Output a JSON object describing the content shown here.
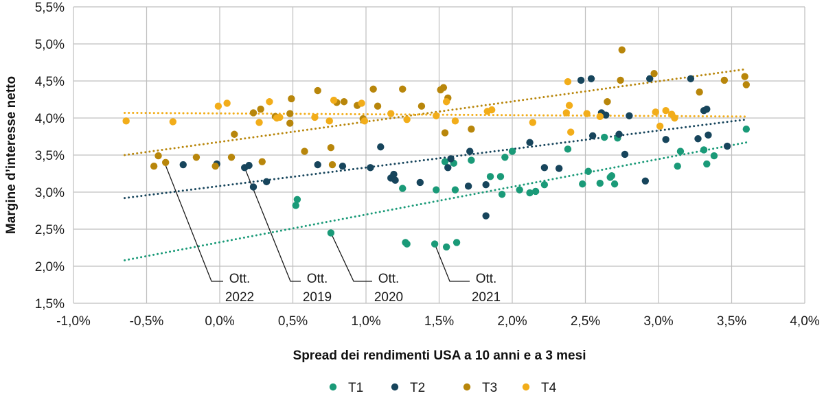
{
  "chart_data": {
    "type": "scatter",
    "xlabel": "Spread dei rendimenti USA a 10 anni e a 3 mesi",
    "ylabel": "Margine d’interesse netto",
    "x_ticks": [
      "-1,0%",
      "-0,5%",
      "0,0%",
      "0,5%",
      "1,0%",
      "1,5%",
      "2,0%",
      "2,5%",
      "3,0%",
      "3,5%",
      "4,0%"
    ],
    "y_ticks": [
      "1,5%",
      "2,0%",
      "2,5%",
      "3,0%",
      "3,5%",
      "4,0%",
      "4,5%",
      "5,0%",
      "5,5%"
    ],
    "xlim": [
      -1.0,
      4.0
    ],
    "ylim": [
      1.5,
      5.5
    ],
    "grid": true,
    "legend_position": "bottom",
    "series": [
      {
        "name": "T1",
        "color": "#1a9a78",
        "trendline": [
          [
            -0.65,
            2.08
          ],
          [
            3.6,
            3.67
          ]
        ],
        "points": [
          [
            0.52,
            2.82
          ],
          [
            0.53,
            2.9
          ],
          [
            0.76,
            2.45
          ],
          [
            1.25,
            3.05
          ],
          [
            1.27,
            2.32
          ],
          [
            1.28,
            2.3
          ],
          [
            1.47,
            2.3
          ],
          [
            1.48,
            3.03
          ],
          [
            1.54,
            3.41
          ],
          [
            1.55,
            2.26
          ],
          [
            1.6,
            3.39
          ],
          [
            1.61,
            3.03
          ],
          [
            1.62,
            2.32
          ],
          [
            1.72,
            3.43
          ],
          [
            1.85,
            3.21
          ],
          [
            1.92,
            3.21
          ],
          [
            1.93,
            2.97
          ],
          [
            1.95,
            3.47
          ],
          [
            2.0,
            3.55
          ],
          [
            2.05,
            3.03
          ],
          [
            2.12,
            2.99
          ],
          [
            2.16,
            3.01
          ],
          [
            2.22,
            3.1
          ],
          [
            2.38,
            3.58
          ],
          [
            2.48,
            3.11
          ],
          [
            2.52,
            3.28
          ],
          [
            2.6,
            3.12
          ],
          [
            2.63,
            3.74
          ],
          [
            2.67,
            3.2
          ],
          [
            2.68,
            3.22
          ],
          [
            2.7,
            3.11
          ],
          [
            2.72,
            3.73
          ],
          [
            3.13,
            3.35
          ],
          [
            3.15,
            3.55
          ],
          [
            3.31,
            3.57
          ],
          [
            3.33,
            3.38
          ],
          [
            3.38,
            3.49
          ],
          [
            3.6,
            3.85
          ]
        ]
      },
      {
        "name": "T2",
        "color": "#17455c",
        "trendline": [
          [
            -0.65,
            2.92
          ],
          [
            3.6,
            3.98
          ]
        ],
        "points": [
          [
            -0.25,
            3.37
          ],
          [
            -0.02,
            3.38
          ],
          [
            0.17,
            3.33
          ],
          [
            0.2,
            3.36
          ],
          [
            0.23,
            3.07
          ],
          [
            0.32,
            3.14
          ],
          [
            0.67,
            3.37
          ],
          [
            0.84,
            3.35
          ],
          [
            1.03,
            3.33
          ],
          [
            1.1,
            3.61
          ],
          [
            1.17,
            3.19
          ],
          [
            1.19,
            3.24
          ],
          [
            1.2,
            3.16
          ],
          [
            1.37,
            3.13
          ],
          [
            1.56,
            3.33
          ],
          [
            1.58,
            3.45
          ],
          [
            1.7,
            3.08
          ],
          [
            1.71,
            3.55
          ],
          [
            1.82,
            2.68
          ],
          [
            1.82,
            3.1
          ],
          [
            2.12,
            3.67
          ],
          [
            2.22,
            3.33
          ],
          [
            2.32,
            3.32
          ],
          [
            2.47,
            4.51
          ],
          [
            2.54,
            4.53
          ],
          [
            2.55,
            3.76
          ],
          [
            2.61,
            4.07
          ],
          [
            2.64,
            4.04
          ],
          [
            2.73,
            3.78
          ],
          [
            2.77,
            3.51
          ],
          [
            2.8,
            4.03
          ],
          [
            2.91,
            3.15
          ],
          [
            2.94,
            4.53
          ],
          [
            3.05,
            3.71
          ],
          [
            3.22,
            4.53
          ],
          [
            3.27,
            3.72
          ],
          [
            3.31,
            4.1
          ],
          [
            3.33,
            4.12
          ],
          [
            3.34,
            3.77
          ],
          [
            3.47,
            3.62
          ]
        ]
      },
      {
        "name": "T3",
        "color": "#b8860b",
        "trendline": [
          [
            -0.65,
            3.5
          ],
          [
            3.6,
            4.66
          ]
        ],
        "points": [
          [
            -0.45,
            3.35
          ],
          [
            -0.42,
            3.49
          ],
          [
            -0.37,
            3.4
          ],
          [
            -0.16,
            3.47
          ],
          [
            -0.03,
            3.35
          ],
          [
            0.08,
            3.47
          ],
          [
            0.1,
            3.78
          ],
          [
            0.23,
            4.07
          ],
          [
            0.28,
            4.12
          ],
          [
            0.29,
            3.41
          ],
          [
            0.38,
            4.02
          ],
          [
            0.48,
            3.93
          ],
          [
            0.48,
            4.06
          ],
          [
            0.49,
            4.26
          ],
          [
            0.58,
            3.55
          ],
          [
            0.67,
            4.37
          ],
          [
            0.76,
            3.6
          ],
          [
            0.77,
            3.37
          ],
          [
            0.8,
            4.21
          ],
          [
            0.85,
            4.22
          ],
          [
            0.94,
            4.17
          ],
          [
            0.98,
            3.99
          ],
          [
            1.05,
            4.39
          ],
          [
            1.08,
            4.16
          ],
          [
            1.25,
            4.39
          ],
          [
            1.38,
            4.16
          ],
          [
            1.51,
            4.38
          ],
          [
            1.53,
            4.41
          ],
          [
            1.54,
            3.8
          ],
          [
            1.56,
            4.27
          ],
          [
            1.72,
            3.85
          ],
          [
            2.65,
            4.22
          ],
          [
            2.74,
            4.51
          ],
          [
            2.75,
            4.92
          ],
          [
            2.97,
            4.6
          ],
          [
            3.28,
            4.35
          ],
          [
            3.45,
            4.51
          ],
          [
            3.59,
            4.56
          ],
          [
            3.6,
            4.45
          ]
        ]
      },
      {
        "name": "T4",
        "color": "#f2ad1a",
        "trendline": [
          [
            -0.65,
            4.07
          ],
          [
            3.6,
            4.02
          ]
        ],
        "points": [
          [
            -0.64,
            3.96
          ],
          [
            -0.32,
            3.95
          ],
          [
            -0.01,
            4.16
          ],
          [
            0.05,
            4.2
          ],
          [
            0.27,
            3.94
          ],
          [
            0.34,
            4.22
          ],
          [
            0.39,
            4.0
          ],
          [
            0.41,
            4.01
          ],
          [
            0.65,
            4.01
          ],
          [
            0.75,
            3.96
          ],
          [
            0.78,
            4.24
          ],
          [
            0.97,
            4.2
          ],
          [
            0.99,
            3.96
          ],
          [
            1.17,
            4.06
          ],
          [
            1.28,
            3.98
          ],
          [
            1.48,
            4.03
          ],
          [
            1.55,
            4.22
          ],
          [
            1.61,
            3.96
          ],
          [
            1.83,
            4.09
          ],
          [
            1.86,
            4.11
          ],
          [
            2.14,
            3.94
          ],
          [
            2.37,
            4.07
          ],
          [
            2.38,
            4.49
          ],
          [
            2.39,
            4.17
          ],
          [
            2.4,
            3.81
          ],
          [
            2.51,
            4.06
          ],
          [
            2.6,
            4.02
          ],
          [
            2.98,
            4.08
          ],
          [
            3.01,
            3.89
          ],
          [
            3.05,
            4.1
          ],
          [
            3.09,
            4.05
          ],
          [
            3.11,
            4.0
          ]
        ]
      }
    ],
    "annotations": [
      {
        "line1": "Ott.",
        "line2": "2022",
        "point": [
          -0.38,
          3.41
        ]
      },
      {
        "line1": "Ott.",
        "line2": "2019",
        "point": [
          0.17,
          3.33
        ]
      },
      {
        "line1": "Ott.",
        "line2": "2020",
        "point": [
          0.76,
          2.45
        ]
      },
      {
        "line1": "Ott.",
        "line2": "2021",
        "point": [
          1.47,
          2.3
        ]
      }
    ]
  }
}
